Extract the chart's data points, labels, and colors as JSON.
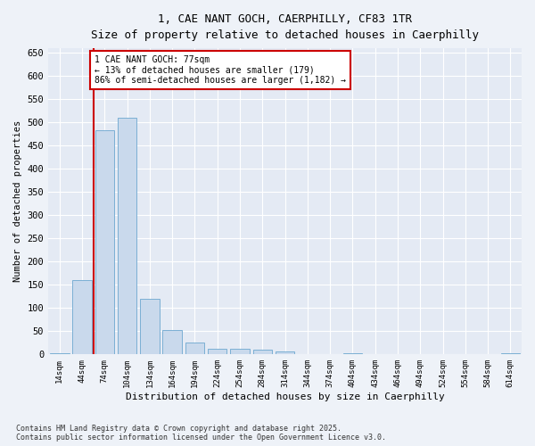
{
  "title_line1": "1, CAE NANT GOCH, CAERPHILLY, CF83 1TR",
  "title_line2": "Size of property relative to detached houses in Caerphilly",
  "xlabel": "Distribution of detached houses by size in Caerphilly",
  "ylabel": "Number of detached properties",
  "categories": [
    "14sqm",
    "44sqm",
    "74sqm",
    "104sqm",
    "134sqm",
    "164sqm",
    "194sqm",
    "224sqm",
    "254sqm",
    "284sqm",
    "314sqm",
    "344sqm",
    "374sqm",
    "404sqm",
    "434sqm",
    "464sqm",
    "494sqm",
    "524sqm",
    "554sqm",
    "584sqm",
    "614sqm"
  ],
  "values": [
    3,
    160,
    483,
    510,
    120,
    52,
    25,
    13,
    12,
    10,
    7,
    0,
    0,
    3,
    0,
    0,
    0,
    0,
    0,
    0,
    3
  ],
  "bar_color": "#c9d9ec",
  "bar_edge_color": "#7bafd4",
  "vline_color": "#cc0000",
  "annotation_text": "1 CAE NANT GOCH: 77sqm\n← 13% of detached houses are smaller (179)\n86% of semi-detached houses are larger (1,182) →",
  "annotation_box_color": "#cc0000",
  "ylim": [
    0,
    660
  ],
  "yticks": [
    0,
    50,
    100,
    150,
    200,
    250,
    300,
    350,
    400,
    450,
    500,
    550,
    600,
    650
  ],
  "footer_line1": "Contains HM Land Registry data © Crown copyright and database right 2025.",
  "footer_line2": "Contains public sector information licensed under the Open Government Licence v3.0.",
  "bg_color": "#eef2f8",
  "plot_bg_color": "#e4eaf4"
}
